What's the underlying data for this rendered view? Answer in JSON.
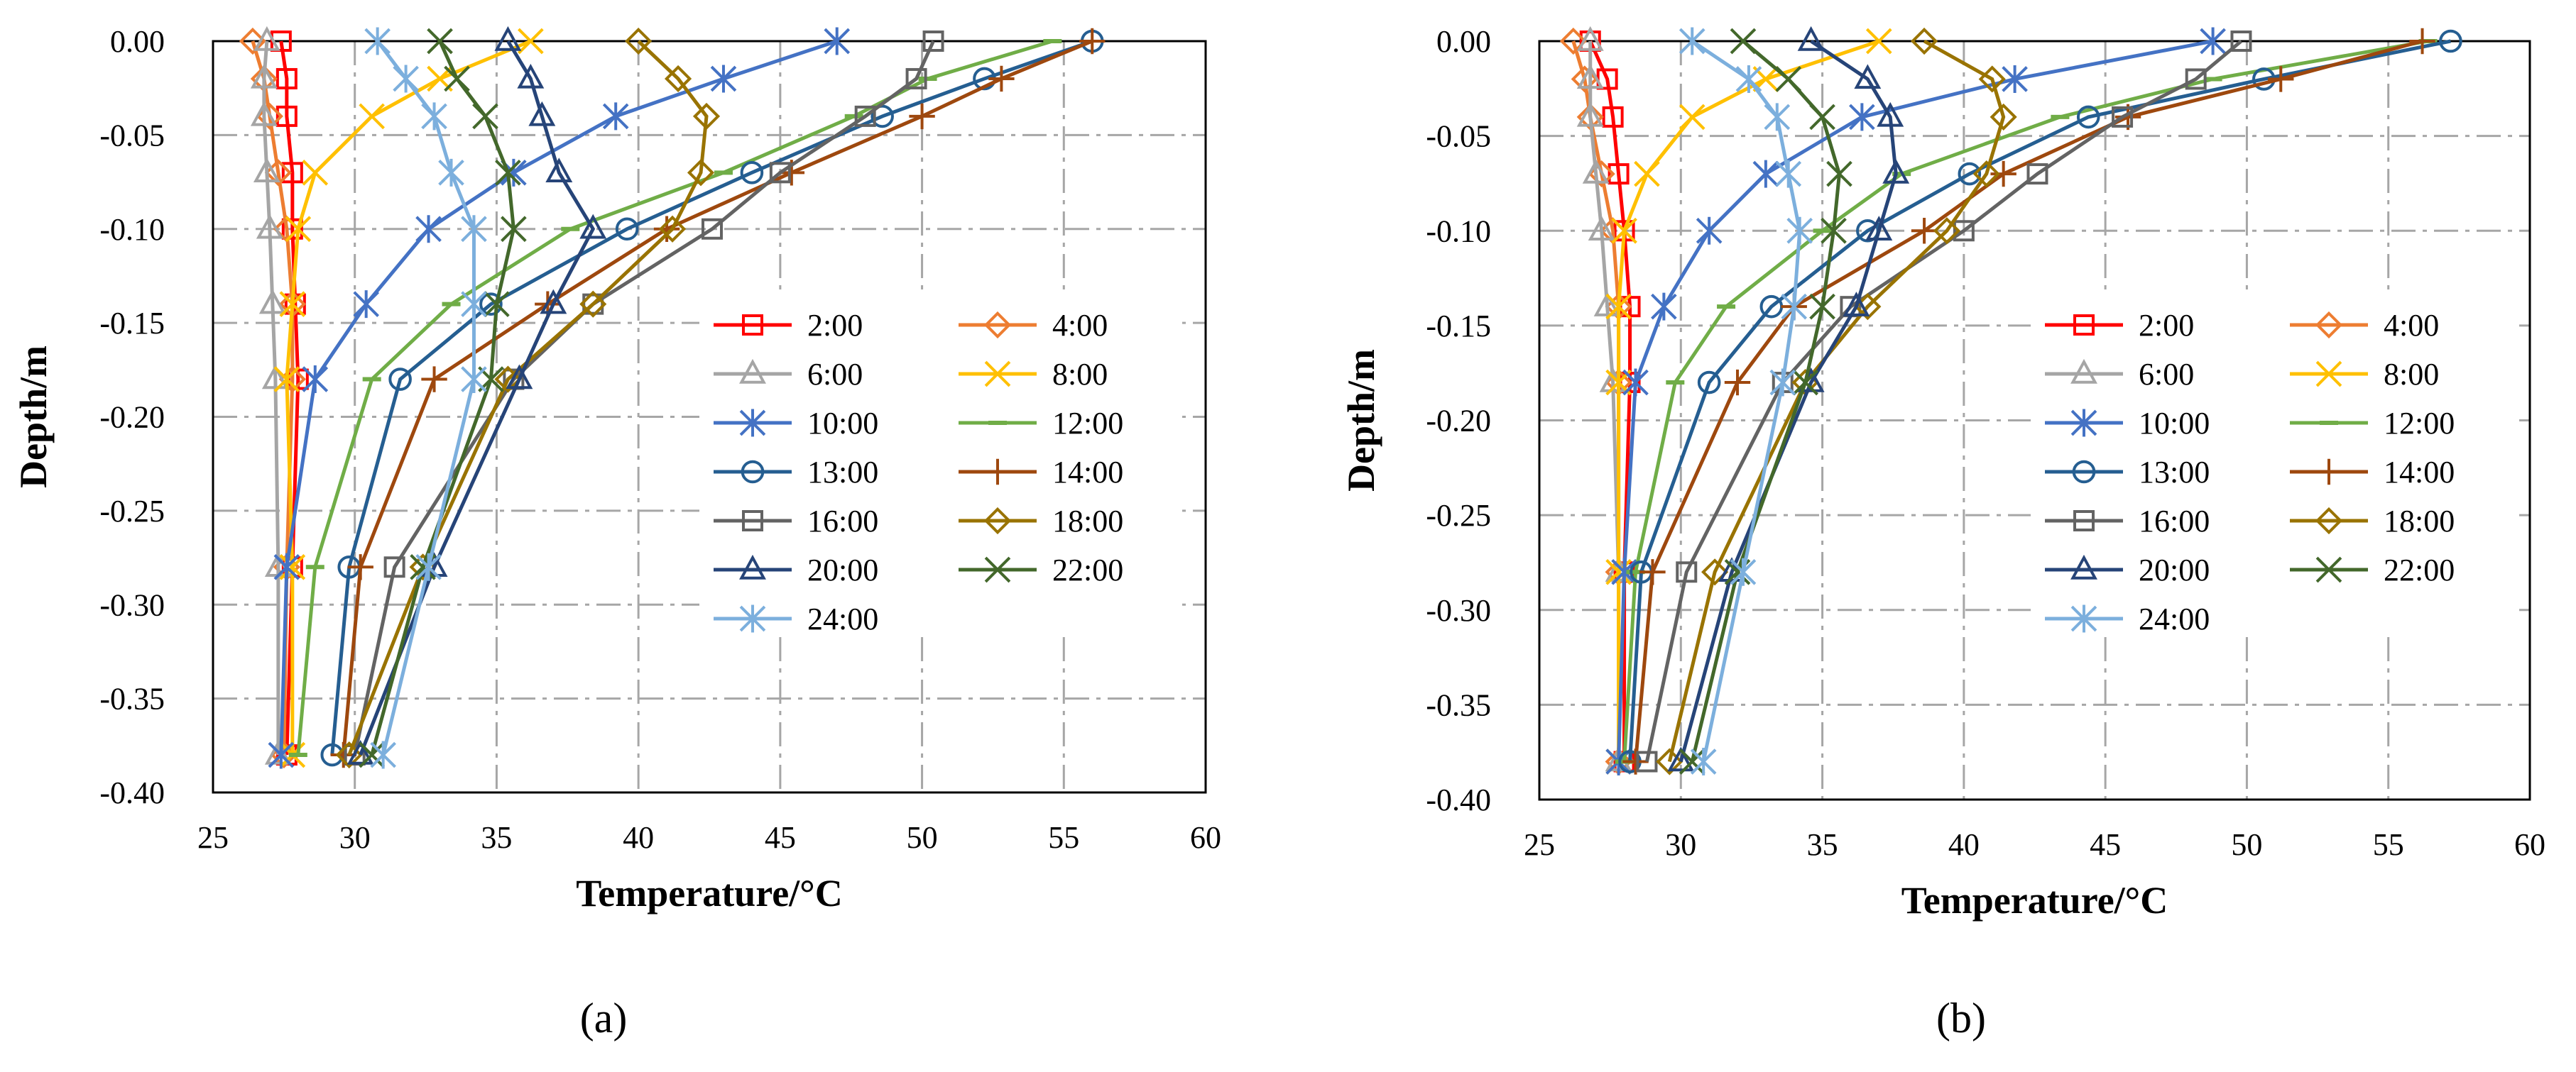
{
  "chart_data": [
    {
      "type": "line",
      "panel_label": "(a)",
      "xlabel": "Temperature/°C",
      "ylabel": "Depth/m",
      "xlim": [
        25,
        60
      ],
      "ylim": [
        -0.4,
        0.0
      ],
      "x_ticks": [
        "25",
        "30",
        "35",
        "40",
        "45",
        "50",
        "55",
        "60"
      ],
      "y_ticks": [
        "0.00",
        "-0.05",
        "-0.10",
        "-0.15",
        "-0.20",
        "-0.25",
        "-0.30",
        "-0.35",
        "-0.40"
      ],
      "grid": true,
      "legend_position": "center-right",
      "depths": [
        0.0,
        -0.02,
        -0.04,
        -0.07,
        -0.1,
        -0.14,
        -0.18,
        -0.28,
        -0.38
      ],
      "series": [
        {
          "name": "2:00",
          "color": "#FF0000",
          "marker": "square",
          "values": [
            27.4,
            27.6,
            27.6,
            27.8,
            27.8,
            27.9,
            28.0,
            27.8,
            27.6
          ]
        },
        {
          "name": "4:00",
          "color": "#ED7D31",
          "marker": "diamond",
          "values": [
            26.4,
            26.8,
            27.0,
            27.3,
            27.6,
            27.8,
            27.8,
            27.6,
            27.5
          ]
        },
        {
          "name": "6:00",
          "color": "#A5A5A5",
          "marker": "triangle",
          "values": [
            26.9,
            26.8,
            26.8,
            26.9,
            27.0,
            27.1,
            27.2,
            27.3,
            27.3
          ]
        },
        {
          "name": "8:00",
          "color": "#FFC000",
          "marker": "x",
          "values": [
            36.2,
            33.0,
            30.6,
            28.6,
            28.0,
            27.8,
            27.6,
            27.8,
            27.8
          ]
        },
        {
          "name": "10:00",
          "color": "#4472C4",
          "marker": "asterisk",
          "values": [
            47.0,
            43.0,
            39.2,
            35.6,
            32.6,
            30.4,
            28.6,
            27.6,
            27.4
          ]
        },
        {
          "name": "12:00",
          "color": "#70AD47",
          "marker": "dash",
          "values": [
            54.6,
            50.2,
            47.6,
            43.0,
            37.6,
            33.4,
            30.6,
            28.6,
            28.0
          ]
        },
        {
          "name": "13:00",
          "color": "#255E91",
          "marker": "circle",
          "values": [
            56.0,
            52.2,
            48.6,
            44.0,
            39.6,
            34.8,
            31.6,
            29.8,
            29.2
          ]
        },
        {
          "name": "14:00",
          "color": "#9E480E",
          "marker": "plus",
          "values": [
            56.0,
            52.8,
            50.0,
            45.4,
            41.0,
            36.8,
            32.8,
            30.2,
            29.6
          ]
        },
        {
          "name": "16:00",
          "color": "#636363",
          "marker": "square",
          "values": [
            50.4,
            49.8,
            48.0,
            45.0,
            42.6,
            38.4,
            35.6,
            31.4,
            30.0
          ]
        },
        {
          "name": "18:00",
          "color": "#997300",
          "marker": "diamond",
          "values": [
            40.0,
            41.4,
            42.4,
            42.2,
            41.2,
            38.4,
            35.4,
            32.4,
            29.8
          ]
        },
        {
          "name": "20:00",
          "color": "#264478",
          "marker": "triangle",
          "values": [
            35.4,
            36.2,
            36.6,
            37.2,
            38.4,
            37.0,
            35.8,
            32.8,
            30.2
          ]
        },
        {
          "name": "22:00",
          "color": "#43682B",
          "marker": "x",
          "values": [
            33.0,
            33.6,
            34.6,
            35.4,
            35.6,
            35.0,
            34.8,
            32.4,
            30.6
          ]
        },
        {
          "name": "24:00",
          "color": "#7CAFDD",
          "marker": "asterisk",
          "values": [
            30.8,
            31.8,
            32.8,
            33.4,
            34.2,
            34.2,
            34.2,
            32.6,
            31.0
          ]
        }
      ]
    },
    {
      "type": "line",
      "panel_label": "(b)",
      "xlabel": "Temperature/°C",
      "ylabel": "Depth/m",
      "xlim": [
        25,
        60
      ],
      "ylim": [
        -0.4,
        0.0
      ],
      "x_ticks": [
        "25",
        "30",
        "35",
        "40",
        "45",
        "50",
        "55",
        "60"
      ],
      "y_ticks": [
        "0.00",
        "-0.05",
        "-0.10",
        "-0.15",
        "-0.20",
        "-0.25",
        "-0.30",
        "-0.35",
        "-0.40"
      ],
      "grid": true,
      "legend_position": "center-right",
      "depths": [
        0.0,
        -0.02,
        -0.04,
        -0.07,
        -0.1,
        -0.14,
        -0.18,
        -0.28,
        -0.38
      ],
      "series": [
        {
          "name": "2:00",
          "color": "#FF0000",
          "marker": "square",
          "values": [
            26.8,
            27.4,
            27.6,
            27.8,
            28.0,
            28.2,
            28.2,
            28.0,
            28.0
          ]
        },
        {
          "name": "4:00",
          "color": "#ED7D31",
          "marker": "diamond",
          "values": [
            26.2,
            26.6,
            26.8,
            27.2,
            27.6,
            27.8,
            27.8,
            27.8,
            27.8
          ]
        },
        {
          "name": "6:00",
          "color": "#A5A5A5",
          "marker": "triangle",
          "values": [
            26.8,
            26.8,
            26.8,
            27.0,
            27.2,
            27.4,
            27.6,
            27.8,
            27.8
          ]
        },
        {
          "name": "8:00",
          "color": "#FFC000",
          "marker": "x",
          "values": [
            37.0,
            33.0,
            30.4,
            28.8,
            28.0,
            27.8,
            27.8,
            27.8,
            27.8
          ]
        },
        {
          "name": "10:00",
          "color": "#4472C4",
          "marker": "asterisk",
          "values": [
            48.8,
            41.8,
            36.4,
            33.0,
            31.0,
            29.4,
            28.4,
            28.0,
            27.8
          ]
        },
        {
          "name": "12:00",
          "color": "#70AD47",
          "marker": "dash",
          "values": [
            56.4,
            48.8,
            43.4,
            37.8,
            35.0,
            31.6,
            29.8,
            28.4,
            28.0
          ]
        },
        {
          "name": "13:00",
          "color": "#255E91",
          "marker": "circle",
          "values": [
            57.2,
            50.6,
            44.4,
            40.2,
            36.6,
            33.2,
            31.0,
            28.6,
            28.2
          ]
        },
        {
          "name": "14:00",
          "color": "#9E480E",
          "marker": "plus",
          "values": [
            56.2,
            51.2,
            45.8,
            41.4,
            38.6,
            34.0,
            32.0,
            29.0,
            28.4
          ]
        },
        {
          "name": "16:00",
          "color": "#636363",
          "marker": "square",
          "values": [
            49.8,
            48.2,
            45.6,
            42.6,
            40.0,
            36.0,
            33.6,
            30.2,
            28.8
          ]
        },
        {
          "name": "18:00",
          "color": "#997300",
          "marker": "diamond",
          "values": [
            38.6,
            41.0,
            41.4,
            40.8,
            39.4,
            36.6,
            34.4,
            31.2,
            29.6
          ]
        },
        {
          "name": "20:00",
          "color": "#264478",
          "marker": "triangle",
          "values": [
            34.6,
            36.6,
            37.4,
            37.6,
            37.0,
            36.2,
            34.6,
            31.8,
            30.0
          ]
        },
        {
          "name": "22:00",
          "color": "#43682B",
          "marker": "x",
          "values": [
            32.2,
            33.8,
            35.0,
            35.6,
            35.4,
            35.0,
            34.4,
            32.0,
            30.4
          ]
        },
        {
          "name": "24:00",
          "color": "#7CAFDD",
          "marker": "asterisk",
          "values": [
            30.4,
            32.4,
            33.4,
            33.8,
            34.2,
            34.0,
            33.6,
            32.2,
            30.8
          ]
        }
      ]
    }
  ]
}
